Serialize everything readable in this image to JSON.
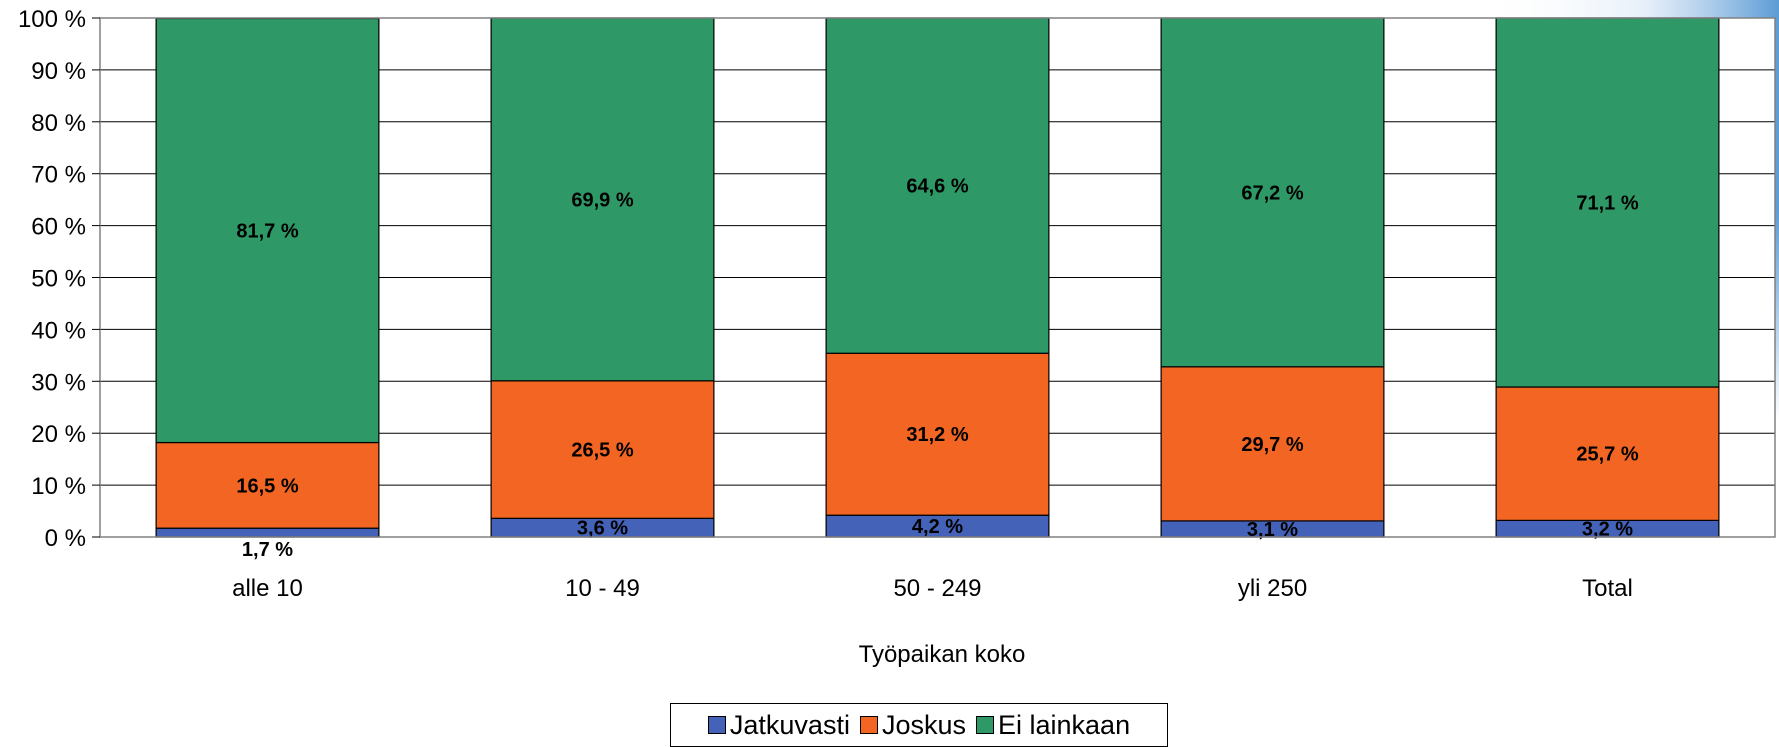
{
  "chart_data": {
    "type": "bar",
    "stacked": true,
    "categories": [
      "alle 10",
      "10 - 49",
      "50 - 249",
      "yli 250",
      "Total"
    ],
    "series": [
      {
        "name": "Jatkuvasti",
        "color": "#4462b8",
        "values": [
          1.7,
          3.6,
          4.2,
          3.1,
          3.2
        ],
        "labels": [
          "1,7 %",
          "3,6 %",
          "4,2 %",
          "3,1 %",
          "3,2 %"
        ]
      },
      {
        "name": "Joskus",
        "color": "#f26522",
        "values": [
          16.5,
          26.5,
          31.2,
          29.7,
          25.7
        ],
        "labels": [
          "16,5 %",
          "26,5 %",
          "31,2 %",
          "29,7 %",
          "25,7 %"
        ]
      },
      {
        "name": "Ei lainkaan",
        "color": "#2e9966",
        "values": [
          81.7,
          69.9,
          64.6,
          67.2,
          71.1
        ],
        "labels": [
          "81,7 %",
          "69,9 %",
          "64,6 %",
          "67,2 %",
          "71,1 %"
        ]
      }
    ],
    "yticks": [
      "0 %",
      "10 %",
      "20 %",
      "30 %",
      "40 %",
      "50 %",
      "60 %",
      "70 %",
      "80 %",
      "90 %",
      "100 %"
    ],
    "ylim": [
      0,
      100
    ],
    "xlabel": "Työpaikan koko",
    "ylabel": "",
    "grid": true,
    "legend_position": "bottom"
  }
}
